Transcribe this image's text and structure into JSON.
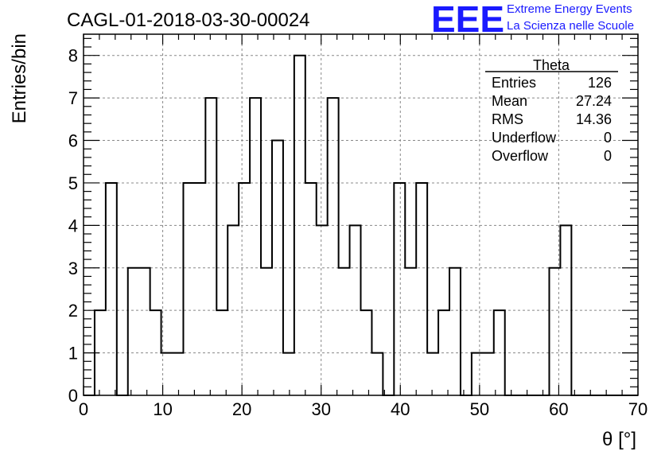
{
  "chart_data": {
    "type": "histogram",
    "title": "CAGL-01-2018-03-30-00024",
    "xlabel": "θ [°]",
    "ylabel": "Entries/bin",
    "xlim": [
      0,
      70
    ],
    "ylim": [
      0,
      8.5
    ],
    "x_ticks": [
      0,
      10,
      20,
      30,
      40,
      50,
      60,
      70
    ],
    "y_ticks": [
      0,
      1,
      2,
      3,
      4,
      5,
      6,
      7,
      8
    ],
    "grid": true,
    "bin_edges": [
      0,
      1.4,
      2.8,
      4.2,
      5.6,
      7.0,
      8.4,
      9.8,
      11.2,
      12.6,
      14.0,
      15.4,
      16.8,
      18.2,
      19.6,
      21.0,
      22.4,
      23.8,
      25.2,
      26.6,
      28.0,
      29.4,
      30.8,
      32.2,
      33.6,
      35.0,
      36.4,
      37.8,
      39.2,
      40.6,
      42.0,
      43.4,
      44.8,
      46.2,
      47.6,
      49.0,
      50.4,
      51.8,
      53.2,
      54.6,
      56.0,
      57.4,
      58.8,
      60.2,
      61.6,
      63.0,
      64.4,
      65.8,
      67.2,
      68.6,
      70.0
    ],
    "counts": [
      0,
      2,
      5,
      0,
      3,
      3,
      2,
      1,
      1,
      5,
      5,
      7,
      2,
      4,
      5,
      7,
      3,
      6,
      1,
      8,
      5,
      4,
      7,
      3,
      4,
      2,
      1,
      0,
      5,
      3,
      5,
      1,
      2,
      3,
      0,
      1,
      1,
      2,
      0,
      0,
      0,
      0,
      3,
      4,
      0,
      0,
      0,
      0,
      0,
      0
    ],
    "stats_box": {
      "title": "Theta",
      "rows": [
        {
          "label": "Entries",
          "value": "126"
        },
        {
          "label": "Mean",
          "value": "27.24"
        },
        {
          "label": "RMS",
          "value": "14.36"
        },
        {
          "label": "Underflow",
          "value": "0"
        },
        {
          "label": "Overflow",
          "value": "0"
        }
      ]
    }
  },
  "logo": {
    "text": "EEE",
    "line1": "Extreme Energy Events",
    "line2": "La Scienza nelle Scuole",
    "color": "#1a1aff"
  }
}
